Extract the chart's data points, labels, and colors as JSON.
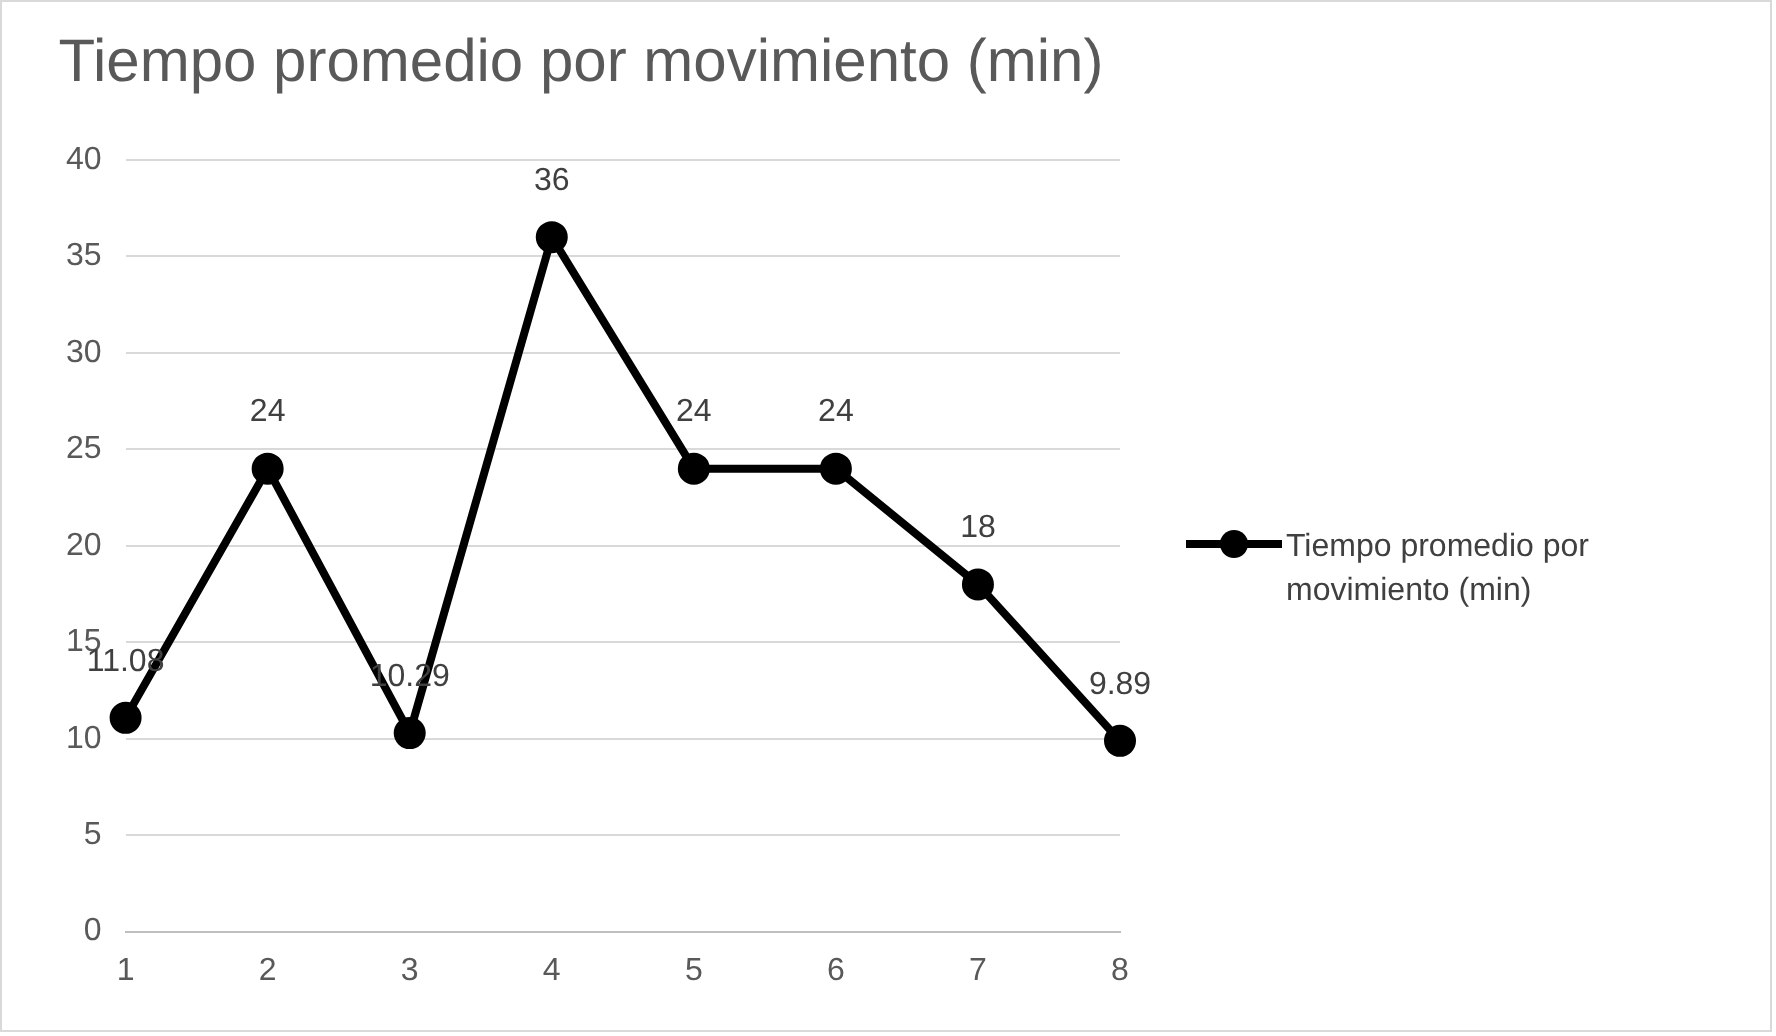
{
  "chart_data": {
    "type": "line",
    "title": "Tiempo promedio por movimiento (min)",
    "categories": [
      "1",
      "2",
      "3",
      "4",
      "5",
      "6",
      "7",
      "8"
    ],
    "series": [
      {
        "name": "Tiempo promedio por movimiento (min)",
        "color": "#000000",
        "values": [
          11.08,
          24,
          10.29,
          36,
          24,
          24,
          18,
          9.89
        ]
      }
    ],
    "ylim": [
      0,
      40
    ],
    "yticks": [
      0,
      5,
      10,
      15,
      20,
      25,
      30,
      35,
      40
    ],
    "grid": "y",
    "legend": "right",
    "marker": "circle",
    "line_style": "solid",
    "data_labels": true
  }
}
